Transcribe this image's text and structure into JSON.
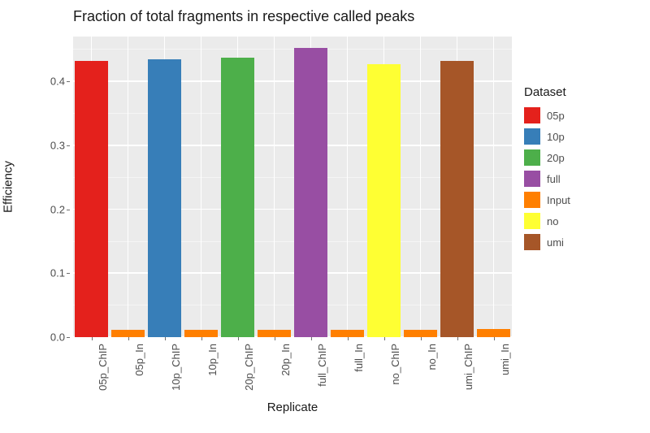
{
  "chart": {
    "type": "bar",
    "title": "Fraction of total fragments in respective called peaks",
    "title_fontsize": 18,
    "x_axis_title": "Replicate",
    "y_axis_title": "Efficiency",
    "axis_title_fontsize": 15,
    "tick_fontsize": 13,
    "background_color": "#ffffff",
    "panel_background": "#ebebeb",
    "grid_major_color": "#ffffff",
    "grid_minor_color": "#f5f5f5",
    "text_color": "#4d4d4d",
    "ylim": [
      0,
      0.47
    ],
    "y_ticks": [
      0.0,
      0.1,
      0.2,
      0.3,
      0.4
    ],
    "y_minor_ticks": [
      0.05,
      0.15,
      0.25,
      0.35,
      0.45
    ],
    "bar_width_rel": 0.9,
    "categories": [
      {
        "label": "05p_ChIP",
        "value": 0.432,
        "dataset": "05p"
      },
      {
        "label": "05p_In",
        "value": 0.012,
        "dataset": "Input"
      },
      {
        "label": "10p_ChIP",
        "value": 0.434,
        "dataset": "10p"
      },
      {
        "label": "10p_In",
        "value": 0.012,
        "dataset": "Input"
      },
      {
        "label": "20p_ChIP",
        "value": 0.437,
        "dataset": "20p"
      },
      {
        "label": "20p_In",
        "value": 0.012,
        "dataset": "Input"
      },
      {
        "label": "full_ChIP",
        "value": 0.452,
        "dataset": "full"
      },
      {
        "label": "full_In",
        "value": 0.012,
        "dataset": "Input"
      },
      {
        "label": "no_ChIP",
        "value": 0.427,
        "dataset": "no"
      },
      {
        "label": "no_In",
        "value": 0.011,
        "dataset": "Input"
      },
      {
        "label": "umi_ChIP",
        "value": 0.432,
        "dataset": "umi"
      },
      {
        "label": "umi_In",
        "value": 0.013,
        "dataset": "Input"
      }
    ],
    "dataset_colors": {
      "05p": "#f8766d",
      "10p": "#c49a00",
      "20p": "#53b400",
      "full": "#00c094",
      "Input": "#00b6eb",
      "no": "#a58aff",
      "umi": "#fb61d7"
    },
    "actual_colors": {
      "05p": "#e4211c",
      "10p": "#377eb8",
      "20p": "#4daf4a",
      "full": "#984ea3",
      "Input": "#ff7f00",
      "no": "#feff33",
      "umi": "#a65628"
    },
    "legend": {
      "title": "Dataset",
      "title_fontsize": 15,
      "label_fontsize": 13,
      "items": [
        "05p",
        "10p",
        "20p",
        "full",
        "Input",
        "no",
        "umi"
      ],
      "swatch_size": 20
    }
  }
}
